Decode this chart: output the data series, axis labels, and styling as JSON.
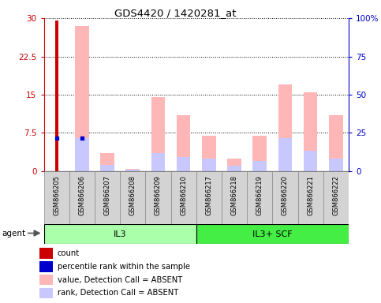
{
  "title": "GDS4420 / 1420281_at",
  "samples": [
    "GSM866205",
    "GSM866206",
    "GSM866207",
    "GSM866208",
    "GSM866209",
    "GSM866210",
    "GSM866217",
    "GSM866218",
    "GSM866219",
    "GSM866220",
    "GSM866221",
    "GSM866222"
  ],
  "groups": [
    {
      "label": "IL3",
      "color": "#aaffaa",
      "start": 0,
      "end": 6
    },
    {
      "label": "IL3+ SCF",
      "color": "#44ee44",
      "start": 6,
      "end": 12
    }
  ],
  "count_values": [
    29.5,
    0,
    0,
    0,
    0,
    0,
    0,
    0,
    0,
    0,
    0,
    0
  ],
  "percentile_values": [
    6.5,
    6.5,
    0,
    0,
    0,
    0,
    0,
    0,
    0,
    0,
    0,
    0
  ],
  "absent_value_bars": [
    0,
    28.5,
    3.5,
    0.4,
    14.5,
    11.0,
    7.0,
    2.5,
    7.0,
    17.0,
    15.5,
    11.0
  ],
  "absent_rank_bars": [
    0,
    6.5,
    1.2,
    0.3,
    3.5,
    2.8,
    2.5,
    1.0,
    2.0,
    6.5,
    4.0,
    2.5
  ],
  "ylim_left": [
    0,
    30
  ],
  "ylim_right": [
    0,
    100
  ],
  "yticks_left": [
    0,
    7.5,
    15,
    22.5,
    30
  ],
  "yticks_right": [
    0,
    25,
    50,
    75,
    100
  ],
  "ytick_labels_left": [
    "0",
    "7.5",
    "15",
    "22.5",
    "30"
  ],
  "ytick_labels_right": [
    "0",
    "25",
    "50",
    "75",
    "100%"
  ],
  "left_axis_color": "#cc0000",
  "right_axis_color": "#0000cc",
  "count_color": "#cc0000",
  "percentile_color": "#0000cc",
  "absent_value_color": "#ffb6b6",
  "absent_rank_color": "#c8c8ff",
  "plot_bg": "#ffffff",
  "legend_items": [
    {
      "color": "#cc0000",
      "label": "count"
    },
    {
      "color": "#0000cc",
      "label": "percentile rank within the sample"
    },
    {
      "color": "#ffb6b6",
      "label": "value, Detection Call = ABSENT"
    },
    {
      "color": "#c8c8ff",
      "label": "rank, Detection Call = ABSENT"
    }
  ],
  "bar_width": 0.55,
  "count_bar_width": 0.12
}
